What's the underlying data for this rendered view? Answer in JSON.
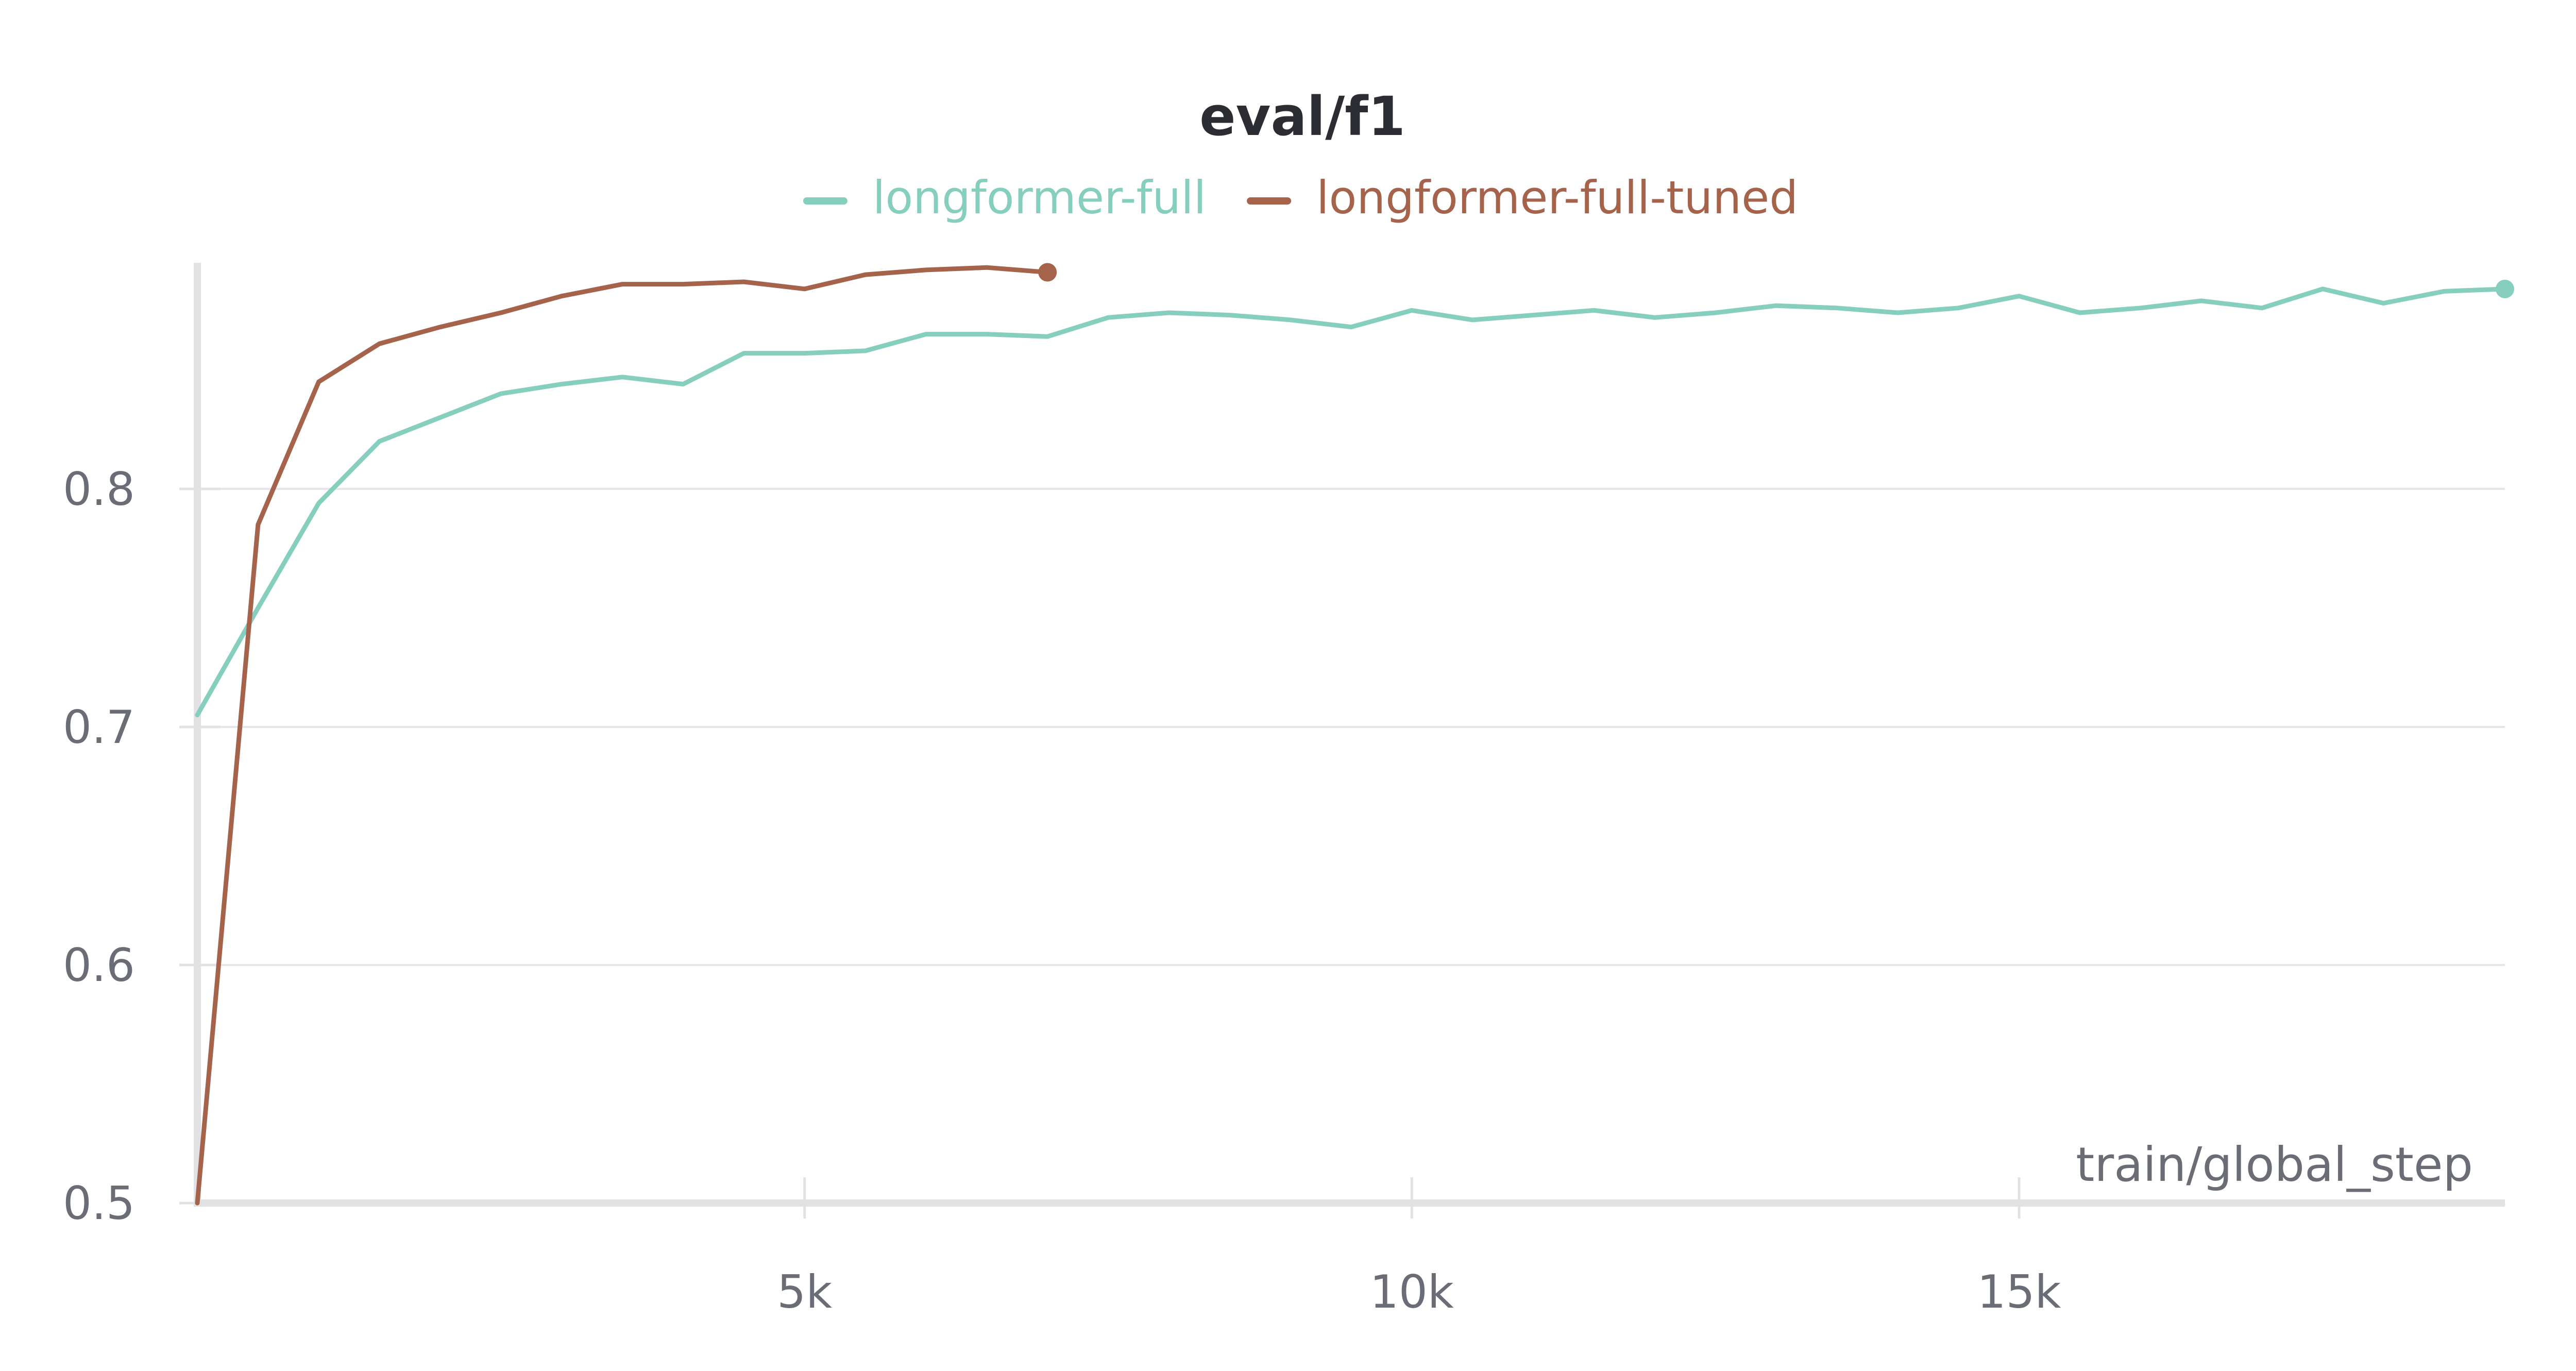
{
  "chart_data": {
    "type": "line",
    "title": "eval/f1",
    "xlabel": "train/global_step",
    "ylabel": "",
    "xlim": [
      0,
      19000
    ],
    "ylim": [
      0.5,
      0.895
    ],
    "x_ticks": [
      5000,
      10000,
      15000
    ],
    "x_tick_labels": [
      "5k",
      "10k",
      "15k"
    ],
    "y_ticks": [
      0.5,
      0.6,
      0.7,
      0.8
    ],
    "y_tick_labels": [
      "0.5",
      "0.6",
      "0.7",
      "0.8"
    ],
    "grid": "horizontal",
    "legend_position": "top-center",
    "series": [
      {
        "name": "longformer-full",
        "color": "#86cfbf",
        "points": [
          [
            0,
            0.705
          ],
          [
            500,
            0.75
          ],
          [
            1000,
            0.794
          ],
          [
            1500,
            0.82
          ],
          [
            2000,
            0.83
          ],
          [
            2500,
            0.84
          ],
          [
            3000,
            0.844
          ],
          [
            3500,
            0.847
          ],
          [
            4000,
            0.844
          ],
          [
            4500,
            0.857
          ],
          [
            5000,
            0.857
          ],
          [
            5500,
            0.858
          ],
          [
            6000,
            0.865
          ],
          [
            6500,
            0.865
          ],
          [
            7000,
            0.864
          ],
          [
            7500,
            0.872
          ],
          [
            8000,
            0.874
          ],
          [
            8500,
            0.873
          ],
          [
            9000,
            0.871
          ],
          [
            9500,
            0.868
          ],
          [
            10000,
            0.875
          ],
          [
            10500,
            0.871
          ],
          [
            11000,
            0.873
          ],
          [
            11500,
            0.875
          ],
          [
            12000,
            0.872
          ],
          [
            12500,
            0.874
          ],
          [
            13000,
            0.877
          ],
          [
            13500,
            0.876
          ],
          [
            14000,
            0.874
          ],
          [
            14500,
            0.876
          ],
          [
            15000,
            0.881
          ],
          [
            15500,
            0.874
          ],
          [
            16000,
            0.876
          ],
          [
            16500,
            0.879
          ],
          [
            17000,
            0.876
          ],
          [
            17500,
            0.884
          ],
          [
            18000,
            0.878
          ],
          [
            18500,
            0.883
          ],
          [
            19000,
            0.884
          ]
        ]
      },
      {
        "name": "longformer-full-tuned",
        "color": "#a5634b",
        "points": [
          [
            0,
            0.5
          ],
          [
            500,
            0.785
          ],
          [
            1000,
            0.845
          ],
          [
            1500,
            0.861
          ],
          [
            2000,
            0.868
          ],
          [
            2500,
            0.874
          ],
          [
            3000,
            0.881
          ],
          [
            3500,
            0.886
          ],
          [
            4000,
            0.886
          ],
          [
            4500,
            0.887
          ],
          [
            5000,
            0.884
          ],
          [
            5500,
            0.89
          ],
          [
            6000,
            0.892
          ],
          [
            6500,
            0.893
          ],
          [
            7000,
            0.891
          ]
        ]
      }
    ]
  }
}
